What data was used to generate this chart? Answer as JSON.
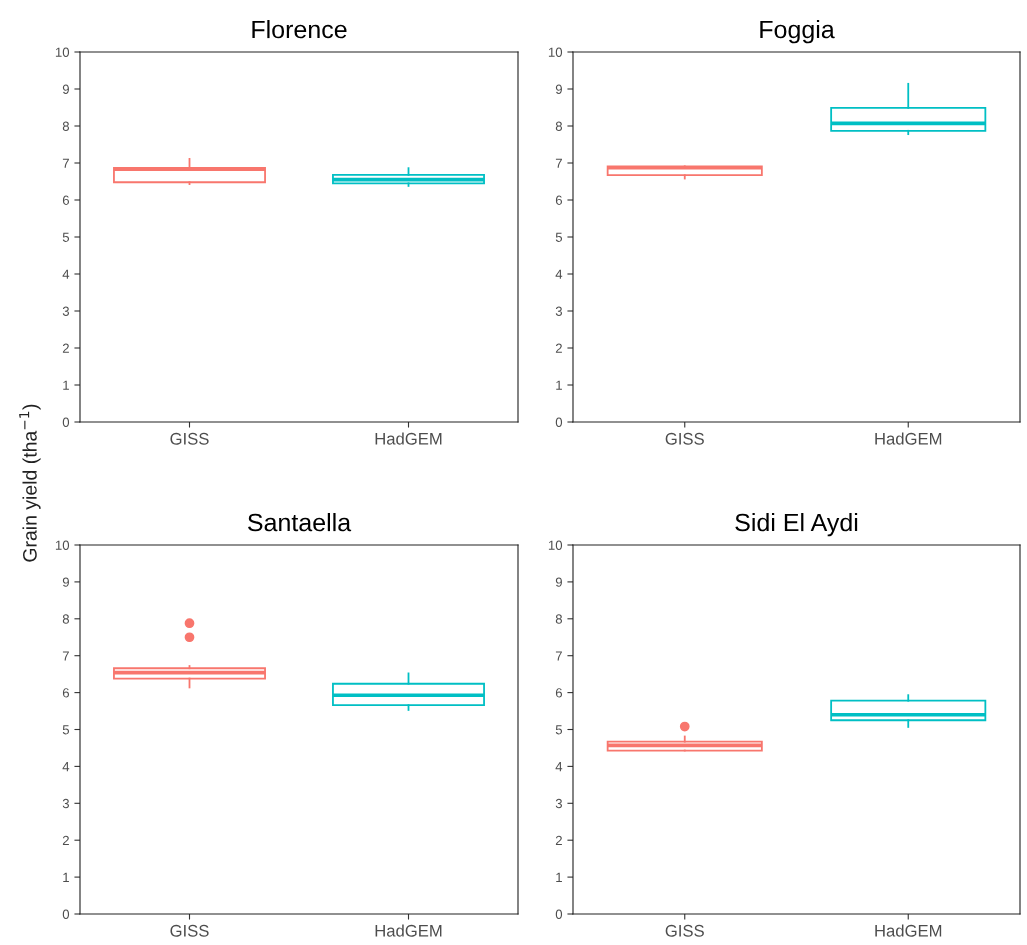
{
  "chart_data": [
    {
      "type": "box",
      "title": "Florence",
      "ylabel": "Grain yield (tha$^{−1}$)",
      "categories": [
        "GISS",
        "HadGEM"
      ],
      "ylim": [
        0,
        10
      ],
      "yticks": [
        0,
        1,
        2,
        3,
        4,
        5,
        6,
        7,
        8,
        9,
        10
      ],
      "grid": false,
      "series": [
        {
          "color": "#f8766d",
          "boxes": [
            {
              "low": 6.43,
              "q1": 6.48,
              "median": 6.83,
              "q3": 6.87,
              "high": 7.11
            },
            null
          ]
        },
        {
          "color": "#00bfc4",
          "boxes": [
            null,
            {
              "low": 6.38,
              "q1": 6.45,
              "median": 6.55,
              "q3": 6.68,
              "high": 6.86
            }
          ]
        }
      ]
    },
    {
      "type": "box",
      "title": "Foggia",
      "categories": [
        "GISS",
        "HadGEM"
      ],
      "ylim": [
        0,
        10
      ],
      "yticks": [
        0,
        1,
        2,
        3,
        4,
        5,
        6,
        7,
        8,
        9,
        10
      ],
      "grid": false,
      "series": [
        {
          "color": "#f8766d",
          "boxes": [
            {
              "low": 6.58,
              "q1": 6.67,
              "median": 6.87,
              "q3": 6.91,
              "high": 6.91
            },
            null
          ]
        },
        {
          "color": "#00bfc4",
          "boxes": [
            null,
            {
              "low": 7.78,
              "q1": 7.87,
              "median": 8.07,
              "q3": 8.49,
              "high": 9.14
            }
          ]
        }
      ]
    },
    {
      "type": "box",
      "title": "Santaella",
      "categories": [
        "GISS",
        "HadGEM"
      ],
      "ylim": [
        0,
        10
      ],
      "yticks": [
        0,
        1,
        2,
        3,
        4,
        5,
        6,
        7,
        8,
        9,
        10
      ],
      "grid": false,
      "series": [
        {
          "color": "#f8766d",
          "boxes": [
            {
              "low": 6.14,
              "q1": 6.38,
              "median": 6.54,
              "q3": 6.66,
              "high": 6.72,
              "outliers": [
                7.5,
                7.88
              ]
            },
            null
          ]
        },
        {
          "color": "#00bfc4",
          "boxes": [
            null,
            {
              "low": 5.53,
              "q1": 5.66,
              "median": 5.93,
              "q3": 6.24,
              "high": 6.52
            }
          ]
        }
      ]
    },
    {
      "type": "box",
      "title": "Sidi El Aydi",
      "categories": [
        "GISS",
        "HadGEM"
      ],
      "ylim": [
        0,
        10
      ],
      "yticks": [
        0,
        1,
        2,
        3,
        4,
        5,
        6,
        7,
        8,
        9,
        10
      ],
      "grid": false,
      "series": [
        {
          "color": "#f8766d",
          "boxes": [
            {
              "low": 4.43,
              "q1": 4.43,
              "median": 4.57,
              "q3": 4.67,
              "high": 4.81,
              "outliers": [
                5.08
              ]
            },
            null
          ]
        },
        {
          "color": "#00bfc4",
          "boxes": [
            null,
            {
              "low": 5.07,
              "q1": 5.25,
              "median": 5.4,
              "q3": 5.78,
              "high": 5.93
            }
          ]
        }
      ]
    }
  ]
}
